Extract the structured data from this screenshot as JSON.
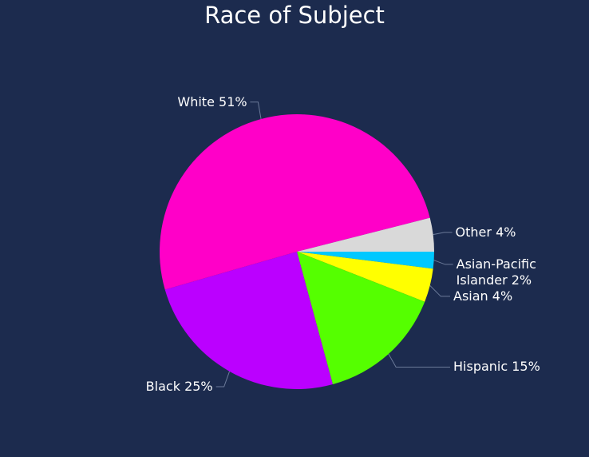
{
  "chart_data": {
    "type": "pie",
    "title": "Race of Subject",
    "categories": [
      "Asian-Pacific Islander",
      "Asian",
      "Hispanic",
      "Black",
      "White",
      "Other"
    ],
    "values": [
      2,
      4,
      15,
      25,
      51,
      4
    ],
    "value_labels": [
      "2%",
      "4%",
      "15%",
      "25%",
      "51%",
      "4%"
    ],
    "colors": [
      "#00c8ff",
      "#ffff00",
      "#55ff00",
      "#bb00ff",
      "#ff00c8",
      "#d9d9d9"
    ]
  }
}
